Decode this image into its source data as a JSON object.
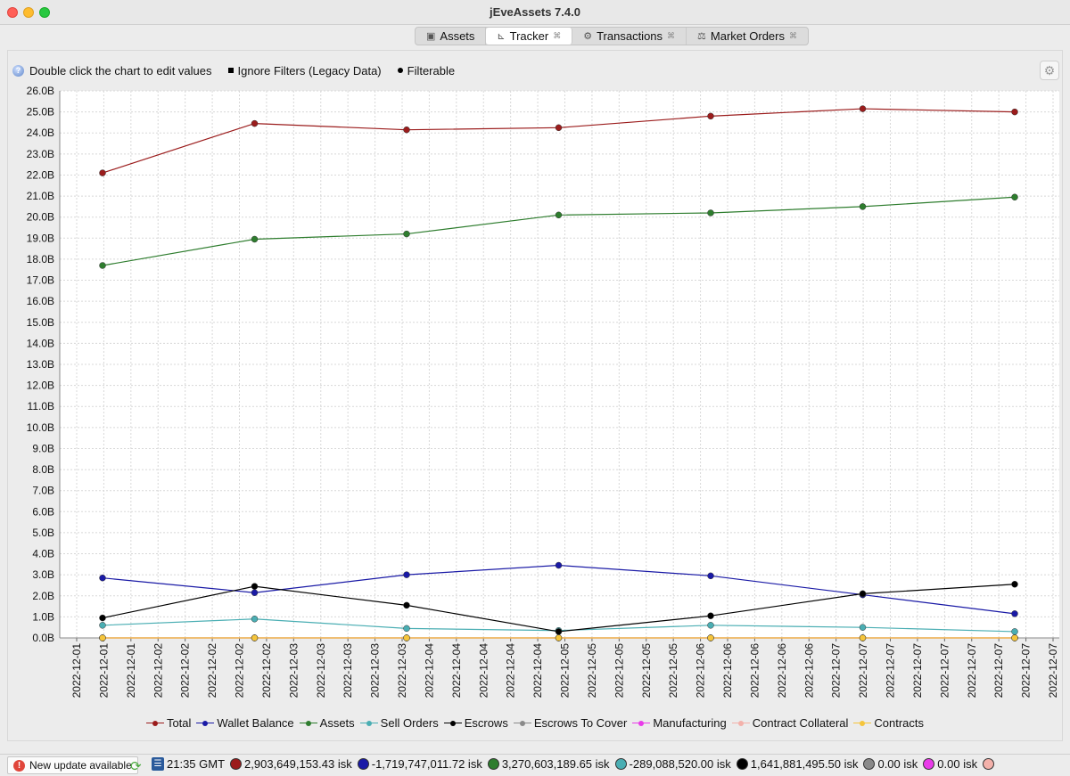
{
  "window": {
    "title": "jEveAssets 7.4.0"
  },
  "tabs": [
    {
      "label": "Assets",
      "icon": "box-icon",
      "closable": false
    },
    {
      "label": "Tracker",
      "icon": "chart-icon",
      "closable": true,
      "active": true
    },
    {
      "label": "Transactions",
      "icon": "transactions-icon",
      "closable": true
    },
    {
      "label": "Market Orders",
      "icon": "market-orders-icon",
      "closable": true
    }
  ],
  "toolbar": {
    "help_text": "Double click the chart to edit values",
    "ignore_filters": "Ignore Filters (Legacy Data)",
    "filterable": "Filterable",
    "settings_icon": "gear-icon"
  },
  "chart_data": {
    "type": "line",
    "y_tick_labels": [
      "0.0B",
      "1.0B",
      "2.0B",
      "3.0B",
      "4.0B",
      "5.0B",
      "6.0B",
      "7.0B",
      "8.0B",
      "9.0B",
      "10.0B",
      "11.0B",
      "12.0B",
      "13.0B",
      "14.0B",
      "15.0B",
      "16.0B",
      "17.0B",
      "18.0B",
      "19.0B",
      "20.0B",
      "21.0B",
      "22.0B",
      "23.0B",
      "24.0B",
      "25.0B",
      "26.0B"
    ],
    "x_tick_labels": [
      "2022-12-01",
      "2022-12-01",
      "2022-12-01",
      "2022-12-02",
      "2022-12-02",
      "2022-12-02",
      "2022-12-02",
      "2022-12-02",
      "2022-12-03",
      "2022-12-03",
      "2022-12-03",
      "2022-12-03",
      "2022-12-03",
      "2022-12-04",
      "2022-12-04",
      "2022-12-04",
      "2022-12-04",
      "2022-12-04",
      "2022-12-05",
      "2022-12-05",
      "2022-12-05",
      "2022-12-05",
      "2022-12-05",
      "2022-12-06",
      "2022-12-06",
      "2022-12-06",
      "2022-12-06",
      "2022-12-06",
      "2022-12-07",
      "2022-12-07",
      "2022-12-07",
      "2022-12-07",
      "2022-12-07",
      "2022-12-07",
      "2022-12-07",
      "2022-12-07",
      "2022-12-07"
    ],
    "ylim": [
      0,
      26
    ],
    "yunit": "B isk",
    "grid": true,
    "legend_position": "bottom",
    "x": [
      "2022-12-01",
      "2022-12-02",
      "2022-12-03",
      "2022-12-04",
      "2022-12-05",
      "2022-12-06",
      "2022-12-07"
    ],
    "series": [
      {
        "name": "Total",
        "color": "#9b1c1c",
        "values": [
          22.1,
          24.45,
          24.15,
          24.25,
          24.8,
          25.15,
          25.0
        ]
      },
      {
        "name": "Wallet Balance",
        "color": "#1a1aa6",
        "values": [
          2.85,
          2.15,
          3.0,
          3.45,
          2.95,
          2.05,
          1.15
        ]
      },
      {
        "name": "Assets",
        "color": "#2e7d2e",
        "values": [
          17.7,
          18.95,
          19.2,
          20.1,
          20.2,
          20.5,
          20.95
        ]
      },
      {
        "name": "Sell Orders",
        "color": "#4aaeb3",
        "values": [
          0.6,
          0.9,
          0.45,
          0.35,
          0.6,
          0.5,
          0.3
        ]
      },
      {
        "name": "Escrows",
        "color": "#000000",
        "values": [
          0.95,
          2.45,
          1.55,
          0.3,
          1.05,
          2.1,
          2.55
        ]
      },
      {
        "name": "Escrows To Cover",
        "color": "#8a8a8a",
        "values": [
          0,
          0,
          0,
          0,
          0,
          0,
          0
        ]
      },
      {
        "name": "Manufacturing",
        "color": "#e93be9",
        "values": [
          0,
          0,
          0,
          0,
          0,
          0,
          0
        ]
      },
      {
        "name": "Contract Collateral",
        "color": "#f3b1aa",
        "values": [
          0,
          0,
          0,
          0,
          0,
          0,
          0
        ]
      },
      {
        "name": "Contracts",
        "color": "#f5c53b",
        "values": [
          0,
          0,
          0,
          0,
          0,
          0,
          0
        ]
      }
    ]
  },
  "statusbar": {
    "update_label": "New update available",
    "time": "21:35 GMT",
    "values": [
      {
        "color": "#9b1c1c",
        "text": "2,903,649,153.43 isk"
      },
      {
        "color": "#1a1aa6",
        "text": "-1,719,747,011.72 isk"
      },
      {
        "color": "#2e7d2e",
        "text": "3,270,603,189.65 isk"
      },
      {
        "color": "#4aaeb3",
        "text": "-289,088,520.00 isk"
      },
      {
        "color": "#000000",
        "text": "1,641,881,495.50 isk"
      },
      {
        "color": "#8a8a8a",
        "text": "0.00 isk"
      },
      {
        "color": "#e93be9",
        "text": "0.00 isk"
      },
      {
        "color": "#f3b1aa",
        "text": ""
      }
    ]
  }
}
